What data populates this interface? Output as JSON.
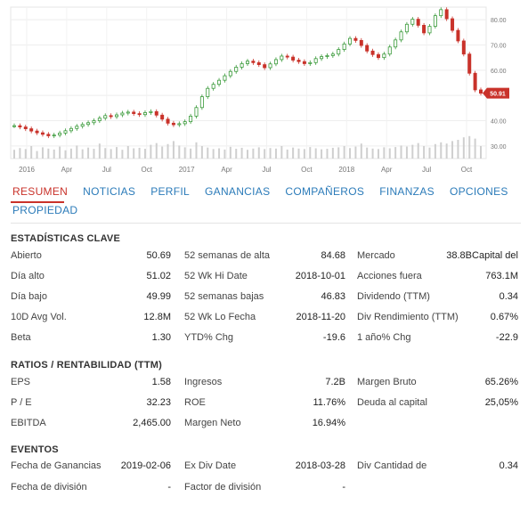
{
  "chart_data": {
    "type": "candlestick",
    "x_ticks": [
      "2016",
      "Apr",
      "Jul",
      "Oct",
      "2017",
      "Apr",
      "Jul",
      "Oct",
      "2018",
      "Apr",
      "Jul",
      "Oct"
    ],
    "y_ticks": [
      "80.00",
      "70.00",
      "60.00",
      "50.00",
      "40.00",
      "30.00"
    ],
    "ylim": [
      25,
      85
    ],
    "current_price_label": "50.91",
    "series_close": [
      38.0,
      37.5,
      36.8,
      35.9,
      35.2,
      34.6,
      34.0,
      34.3,
      35.1,
      36.0,
      36.9,
      37.8,
      38.5,
      39.2,
      40.0,
      41.0,
      42.0,
      41.6,
      42.3,
      43.0,
      43.4,
      42.8,
      42.4,
      43.2,
      43.6,
      42.2,
      40.6,
      39.0,
      38.4,
      38.8,
      39.6,
      41.8,
      45.2,
      49.5,
      52.8,
      54.4,
      56.0,
      57.8,
      59.5,
      61.2,
      62.6,
      63.6,
      63.0,
      62.2,
      61.0,
      62.5,
      64.2,
      65.6,
      65.2,
      64.0,
      63.4,
      62.6,
      63.0,
      64.6,
      65.4,
      65.8,
      66.4,
      68.2,
      70.4,
      72.6,
      71.8,
      69.8,
      67.6,
      66.2,
      65.0,
      66.4,
      69.2,
      72.0,
      75.2,
      78.2,
      80.2,
      77.8,
      74.8,
      77.4,
      81.6,
      84.0,
      80.4,
      75.8,
      71.6,
      66.4,
      58.8,
      52.2,
      50.9
    ],
    "volume": [
      0.35,
      0.42,
      0.38,
      0.5,
      0.3,
      0.45,
      0.4,
      0.36,
      0.48,
      0.33,
      0.4,
      0.52,
      0.37,
      0.44,
      0.39,
      0.6,
      0.42,
      0.38,
      0.46,
      0.35,
      0.5,
      0.41,
      0.43,
      0.39,
      0.55,
      0.62,
      0.48,
      0.58,
      0.7,
      0.52,
      0.45,
      0.4,
      0.65,
      0.5,
      0.44,
      0.38,
      0.41,
      0.36,
      0.47,
      0.39,
      0.43,
      0.35,
      0.4,
      0.45,
      0.38,
      0.42,
      0.4,
      0.5,
      0.36,
      0.44,
      0.4,
      0.38,
      0.46,
      0.41,
      0.37,
      0.39,
      0.43,
      0.45,
      0.5,
      0.42,
      0.48,
      0.6,
      0.44,
      0.4,
      0.38,
      0.45,
      0.41,
      0.46,
      0.52,
      0.48,
      0.55,
      0.62,
      0.5,
      0.44,
      0.58,
      0.65,
      0.6,
      0.7,
      0.75,
      0.85,
      0.9,
      0.8,
      0.5
    ]
  },
  "tabs": [
    {
      "label": "RESUMEN",
      "active": true
    },
    {
      "label": "NOTICIAS",
      "active": false
    },
    {
      "label": "PERFIL",
      "active": false
    },
    {
      "label": "GANANCIAS",
      "active": false
    },
    {
      "label": "COMPAÑEROS",
      "active": false
    },
    {
      "label": "FINANZAS",
      "active": false
    },
    {
      "label": "OPCIONES",
      "active": false
    },
    {
      "label": "PROPIEDAD",
      "active": false
    }
  ],
  "key_stats": {
    "title": "ESTADÍSTICAS CLAVE",
    "col1": [
      {
        "label": "Abierto",
        "value": "50.69"
      },
      {
        "label": "Día alto",
        "value": "51.02"
      },
      {
        "label": "Día bajo",
        "value": "49.99"
      },
      {
        "label": "10D Avg Vol.",
        "value": "12.8M"
      },
      {
        "label": "Beta",
        "value": "1.30"
      }
    ],
    "col2": [
      {
        "label": "52 semanas de alta",
        "value": "84.68"
      },
      {
        "label": "52 Wk Hi Date",
        "value": "2018-10-01"
      },
      {
        "label": "52 semanas bajas",
        "value": "46.83"
      },
      {
        "label": "52 Wk Lo Fecha",
        "value": "2018-11-20"
      },
      {
        "label": "YTD% Chg",
        "value": "-19.6"
      }
    ],
    "col3": [
      {
        "label": "Mercado",
        "value": "38.8BCapital del"
      },
      {
        "label": "Acciones fuera",
        "value": "763.1M"
      },
      {
        "label": "Dividendo (TTM)",
        "value": "0.34"
      },
      {
        "label": "Div Rendimiento (TTM)",
        "value": "0.67%"
      },
      {
        "label": "1 año% Chg",
        "value": "-22.9"
      }
    ]
  },
  "ratios": {
    "title": "RATIOS / RENTABILIDAD (TTM)",
    "col1": [
      {
        "label": "EPS",
        "value": "1.58"
      },
      {
        "label": "P / E",
        "value": "32.23"
      },
      {
        "label": "EBITDA",
        "value": "2,465.00"
      }
    ],
    "col2": [
      {
        "label": "Ingresos",
        "value": "7.2B"
      },
      {
        "label": "ROE",
        "value": "11.76%"
      },
      {
        "label": "Margen Neto",
        "value": "16.94%"
      }
    ],
    "col3": [
      {
        "label": "Margen Bruto",
        "value": "65.26%"
      },
      {
        "label": "Deuda al capital",
        "value": "25,05%"
      }
    ]
  },
  "events": {
    "title": "EVENTOS",
    "col1": [
      {
        "label": "Fecha de Ganancias",
        "value": "2019-02-06"
      },
      {
        "label": "Fecha de división",
        "value": "-"
      }
    ],
    "col2": [
      {
        "label": "Ex Div Date",
        "value": "2018-03-28"
      },
      {
        "label": "Factor de división",
        "value": "-"
      }
    ],
    "col3": [
      {
        "label": "Div Cantidad de",
        "value": "0.34"
      }
    ]
  },
  "colors": {
    "up": "#3a9a3a",
    "down": "#c9322a",
    "tab": "#2b7bb9",
    "tab_active": "#c9322a"
  }
}
